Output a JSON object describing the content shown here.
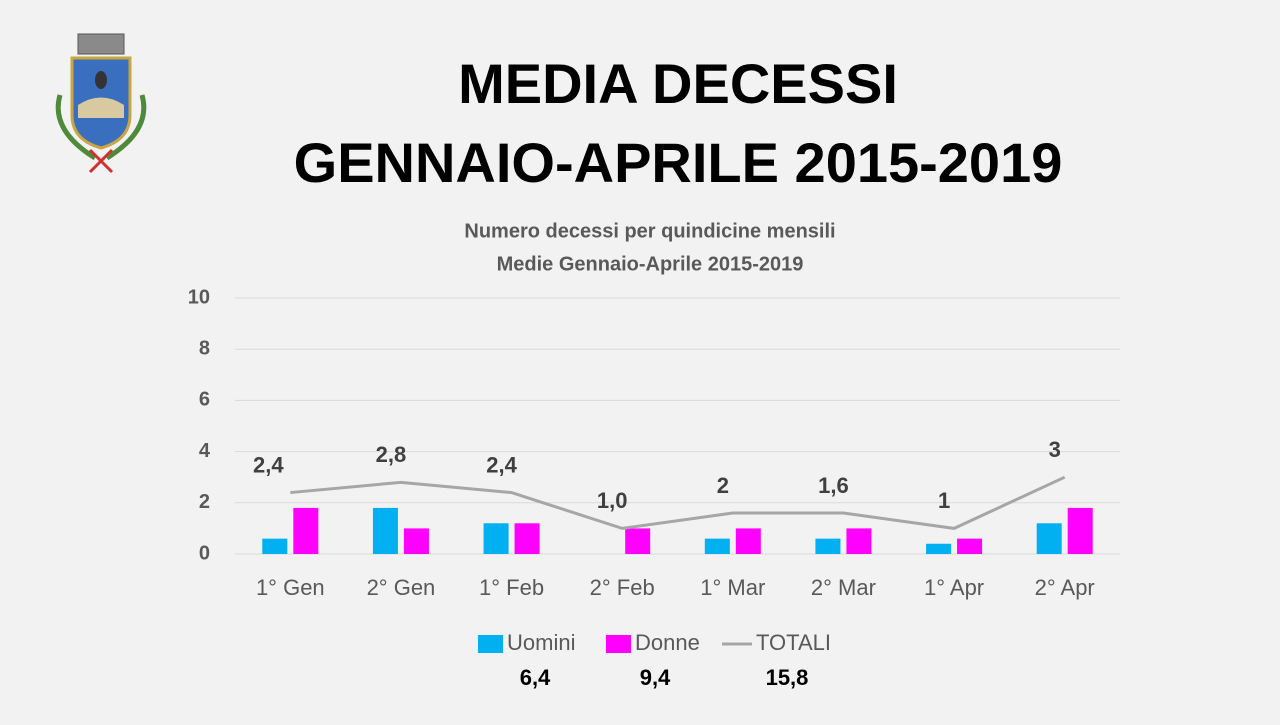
{
  "header": {
    "title": [
      "MEDIA DECESSI",
      "GENNAIO-APRILE 2015-2019"
    ]
  },
  "chart_data": {
    "type": "bar-line",
    "title": [
      "Numero decessi per quindicine mensili",
      "Medie Gennaio-Aprile 2015-2019"
    ],
    "categories": [
      "1°  Gen",
      "2° Gen",
      "1° Feb",
      "2° Feb",
      "1° Mar",
      "2° Mar",
      "1° Apr",
      "2° Apr"
    ],
    "series": [
      {
        "name": "Uomini",
        "kind": "bar",
        "color": "#00b0f0",
        "values": [
          0.6,
          1.8,
          1.2,
          0,
          0.6,
          0.6,
          0.4,
          1.2
        ],
        "total": {
          "value": 6.4,
          "label": "6,4"
        }
      },
      {
        "name": "Donne",
        "kind": "bar",
        "color": "#ff00ff",
        "values": [
          1.8,
          1.0,
          1.2,
          1.0,
          1.0,
          1.0,
          0.6,
          1.8
        ],
        "total": {
          "value": 9.4,
          "label": "9,4"
        }
      },
      {
        "name": "TOTALI",
        "kind": "line",
        "color": "#a6a6a6",
        "values": [
          2.4,
          2.8,
          2.4,
          1.0,
          1.6,
          1.6,
          1.0,
          3.0
        ],
        "value_labels": [
          "2,4",
          "2,8",
          "2,4",
          "1,0",
          "2",
          "1,6",
          "1",
          "3"
        ],
        "total": {
          "value": 15.8,
          "label": "15,8"
        }
      }
    ],
    "ylim": [
      0,
      10
    ],
    "yticks": [
      0,
      2,
      4,
      6,
      8,
      10
    ],
    "grid": true,
    "legend": "bottom"
  }
}
